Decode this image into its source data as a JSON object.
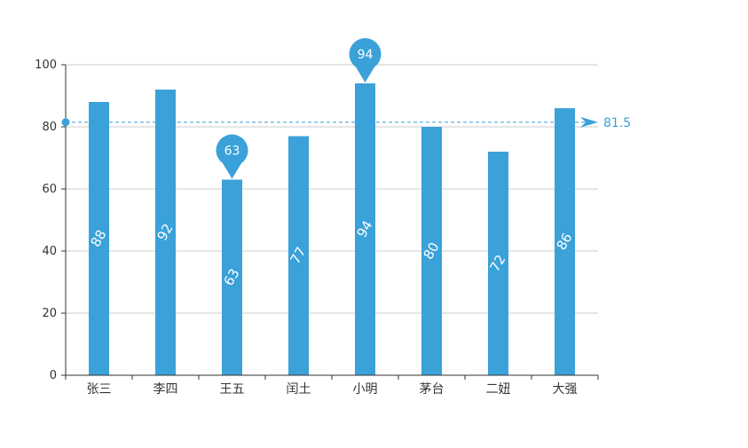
{
  "chart_data": {
    "type": "bar",
    "categories": [
      "张三",
      "李四",
      "王五",
      "闰土",
      "小明",
      "茅台",
      "二妞",
      "大强"
    ],
    "values": [
      88,
      92,
      63,
      77,
      94,
      80,
      72,
      86
    ],
    "ylim": [
      0,
      100
    ],
    "yticks": [
      0,
      20,
      40,
      60,
      80,
      100
    ],
    "grid": true,
    "bar_labels": "inside-rotated",
    "mark_points": [
      {
        "type": "max",
        "category": "小明",
        "value": 94
      },
      {
        "type": "min",
        "category": "王五",
        "value": 63
      }
    ],
    "mark_line": {
      "type": "average",
      "value": 81.5,
      "label": "81.5"
    },
    "colors": {
      "bar": "#3aa1d9",
      "axis": "#333333",
      "grid": "#cccccc",
      "mark_line": "#3aa1d9",
      "label_text": "#ffffff",
      "tick_text": "#333333"
    }
  }
}
